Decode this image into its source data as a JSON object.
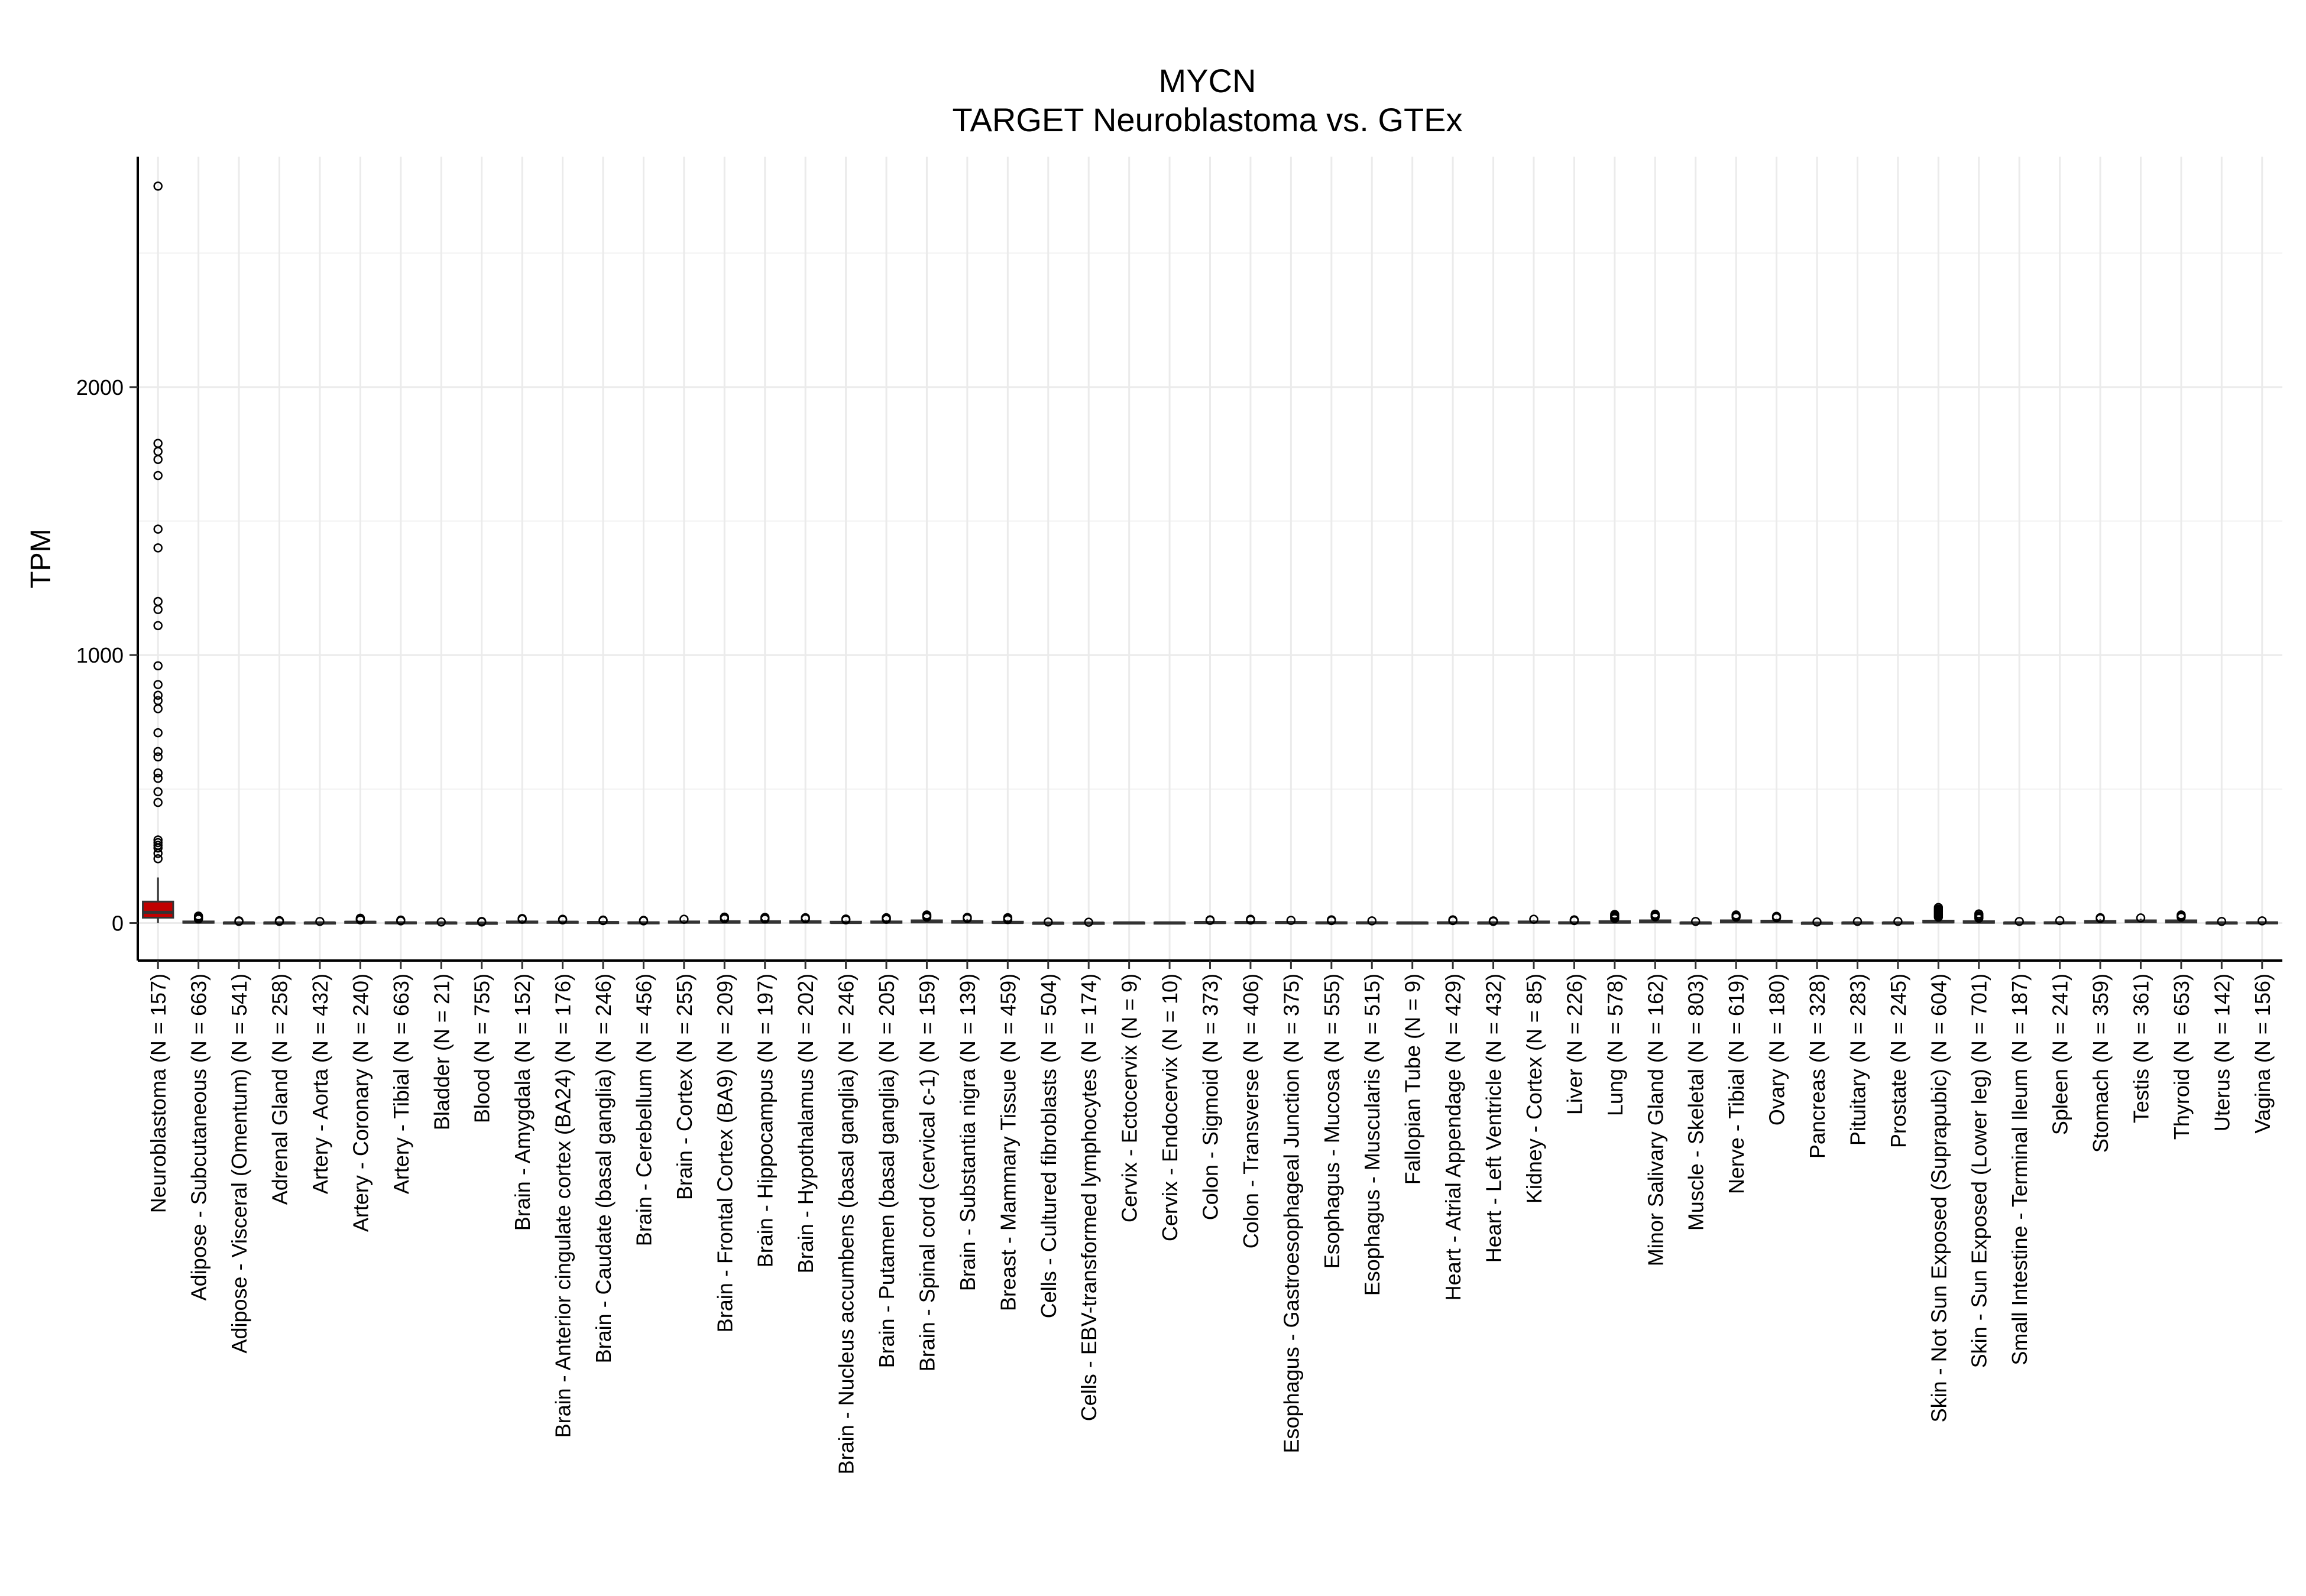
{
  "chart_data": {
    "type": "boxplot",
    "title": "MYCN",
    "subtitle": "TARGET Neuroblastoma vs. GTEx",
    "xlabel": "",
    "ylabel": "TPM",
    "ylim": [
      -140,
      2860
    ],
    "yticks": [
      0,
      1000,
      2000
    ],
    "grid": true,
    "legend": "none",
    "highlight_color": "#c00000",
    "box_color": "#ffffff",
    "categories": [
      "Neuroblastoma (N = 157)",
      "Adipose - Subcutaneous (N = 663)",
      "Adipose - Visceral (Omentum) (N = 541)",
      "Adrenal Gland (N = 258)",
      "Artery - Aorta (N = 432)",
      "Artery - Coronary (N = 240)",
      "Artery - Tibial (N = 663)",
      "Bladder (N = 21)",
      "Blood (N = 755)",
      "Brain - Amygdala (N = 152)",
      "Brain - Anterior cingulate cortex (BA24) (N = 176)",
      "Brain - Caudate (basal ganglia) (N = 246)",
      "Brain - Cerebellum (N = 456)",
      "Brain - Cortex (N = 255)",
      "Brain - Frontal Cortex (BA9) (N = 209)",
      "Brain - Hippocampus (N = 197)",
      "Brain - Hypothalamus (N = 202)",
      "Brain - Nucleus accumbens (basal ganglia) (N = 246)",
      "Brain - Putamen (basal ganglia) (N = 205)",
      "Brain - Spinal cord (cervical c-1) (N = 159)",
      "Brain - Substantia nigra (N = 139)",
      "Breast - Mammary Tissue (N = 459)",
      "Cells - Cultured fibroblasts (N = 504)",
      "Cells - EBV-transformed lymphocytes (N = 174)",
      "Cervix - Ectocervix (N = 9)",
      "Cervix - Endocervix (N = 10)",
      "Colon - Sigmoid (N = 373)",
      "Colon - Transverse (N = 406)",
      "Esophagus - Gastroesophageal Junction (N = 375)",
      "Esophagus - Mucosa (N = 555)",
      "Esophagus - Muscularis (N = 515)",
      "Fallopian Tube (N = 9)",
      "Heart - Atrial Appendage (N = 429)",
      "Heart - Left Ventricle (N = 432)",
      "Kidney - Cortex (N = 85)",
      "Liver (N = 226)",
      "Lung (N = 578)",
      "Minor Salivary Gland (N = 162)",
      "Muscle - Skeletal (N = 803)",
      "Nerve - Tibial (N = 619)",
      "Ovary (N = 180)",
      "Pancreas (N = 328)",
      "Pituitary (N = 283)",
      "Prostate (N = 245)",
      "Skin - Not Sun Exposed (Suprapubic) (N = 604)",
      "Skin - Sun Exposed (Lower leg) (N = 701)",
      "Small Intestine - Terminal Ileum (N = 187)",
      "Spleen (N = 241)",
      "Stomach (N = 359)",
      "Testis (N = 361)",
      "Thyroid (N = 653)",
      "Uterus (N = 142)",
      "Vagina (N = 156)"
    ],
    "boxes": [
      {
        "q1": 20,
        "median": 40,
        "q3": 80,
        "whisker_low": 0,
        "whisker_high": 170,
        "outliers": [
          2750,
          1790,
          1760,
          1730,
          1670,
          1470,
          1400,
          1200,
          1170,
          1110,
          960,
          890,
          850,
          830,
          800,
          710,
          640,
          620,
          560,
          540,
          490,
          450,
          310,
          300,
          290,
          280,
          260,
          240
        ],
        "highlight": true
      },
      {
        "q1": 1,
        "median": 3,
        "q3": 6,
        "whisker_low": 0,
        "whisker_high": 12,
        "outliers": [
          15,
          18,
          22,
          26
        ]
      },
      {
        "q1": 0,
        "median": 1,
        "q3": 2,
        "whisker_low": 0,
        "whisker_high": 4,
        "outliers": [
          6,
          8
        ]
      },
      {
        "q1": 0,
        "median": 1,
        "q3": 2,
        "whisker_low": 0,
        "whisker_high": 4,
        "outliers": [
          6,
          9
        ]
      },
      {
        "q1": 0,
        "median": 1,
        "q3": 2,
        "whisker_low": 0,
        "whisker_high": 4,
        "outliers": [
          6
        ]
      },
      {
        "q1": 1,
        "median": 3,
        "q3": 5,
        "whisker_low": 0,
        "whisker_high": 9,
        "outliers": [
          12,
          15,
          18
        ]
      },
      {
        "q1": 0,
        "median": 1,
        "q3": 3,
        "whisker_low": 0,
        "whisker_high": 6,
        "outliers": [
          8,
          11
        ]
      },
      {
        "q1": 0,
        "median": 1,
        "q3": 2,
        "whisker_low": 0,
        "whisker_high": 3,
        "outliers": [
          4
        ]
      },
      {
        "q1": 0,
        "median": 0,
        "q3": 1,
        "whisker_low": 0,
        "whisker_high": 2,
        "outliers": [
          4,
          6
        ]
      },
      {
        "q1": 1,
        "median": 3,
        "q3": 6,
        "whisker_low": 0,
        "whisker_high": 11,
        "outliers": [
          14,
          17
        ]
      },
      {
        "q1": 1,
        "median": 3,
        "q3": 5,
        "whisker_low": 0,
        "whisker_high": 9,
        "outliers": [
          12,
          14
        ]
      },
      {
        "q1": 1,
        "median": 2,
        "q3": 4,
        "whisker_low": 0,
        "whisker_high": 7,
        "outliers": [
          9,
          11
        ]
      },
      {
        "q1": 0,
        "median": 1,
        "q3": 3,
        "whisker_low": 0,
        "whisker_high": 6,
        "outliers": [
          8,
          10
        ]
      },
      {
        "q1": 1,
        "median": 3,
        "q3": 6,
        "whisker_low": 0,
        "whisker_high": 11,
        "outliers": [
          14
        ]
      },
      {
        "q1": 1,
        "median": 3,
        "q3": 7,
        "whisker_low": 0,
        "whisker_high": 13,
        "outliers": [
          16,
          19,
          22
        ]
      },
      {
        "q1": 1,
        "median": 3,
        "q3": 7,
        "whisker_low": 0,
        "whisker_high": 12,
        "outliers": [
          15,
          18,
          21
        ]
      },
      {
        "q1": 1,
        "median": 4,
        "q3": 7,
        "whisker_low": 0,
        "whisker_high": 13,
        "outliers": [
          16,
          20
        ]
      },
      {
        "q1": 1,
        "median": 2,
        "q3": 5,
        "whisker_low": 0,
        "whisker_high": 9,
        "outliers": [
          12,
          15
        ]
      },
      {
        "q1": 1,
        "median": 3,
        "q3": 6,
        "whisker_low": 0,
        "whisker_high": 11,
        "outliers": [
          14,
          17,
          20
        ]
      },
      {
        "q1": 2,
        "median": 5,
        "q3": 10,
        "whisker_low": 0,
        "whisker_high": 18,
        "outliers": [
          22,
          26,
          30
        ]
      },
      {
        "q1": 1,
        "median": 4,
        "q3": 8,
        "whisker_low": 0,
        "whisker_high": 14,
        "outliers": [
          17,
          21
        ]
      },
      {
        "q1": 1,
        "median": 2,
        "q3": 5,
        "whisker_low": 0,
        "whisker_high": 10,
        "outliers": [
          13,
          16,
          20
        ]
      },
      {
        "q1": 0,
        "median": 0,
        "q3": 1,
        "whisker_low": 0,
        "whisker_high": 2,
        "outliers": [
          4
        ]
      },
      {
        "q1": 0,
        "median": 0,
        "q3": 1,
        "whisker_low": 0,
        "whisker_high": 2,
        "outliers": [
          3
        ]
      },
      {
        "q1": 0,
        "median": 1,
        "q3": 2,
        "whisker_low": 0,
        "whisker_high": 3,
        "outliers": []
      },
      {
        "q1": 0,
        "median": 1,
        "q3": 2,
        "whisker_low": 0,
        "whisker_high": 3,
        "outliers": []
      },
      {
        "q1": 0,
        "median": 2,
        "q3": 4,
        "whisker_low": 0,
        "whisker_high": 8,
        "outliers": [
          10,
          12
        ]
      },
      {
        "q1": 0,
        "median": 2,
        "q3": 4,
        "whisker_low": 0,
        "whisker_high": 8,
        "outliers": [
          11,
          14
        ]
      },
      {
        "q1": 0,
        "median": 2,
        "q3": 4,
        "whisker_low": 0,
        "whisker_high": 7,
        "outliers": [
          10
        ]
      },
      {
        "q1": 0,
        "median": 1,
        "q3": 3,
        "whisker_low": 0,
        "whisker_high": 6,
        "outliers": [
          9,
          12
        ]
      },
      {
        "q1": 0,
        "median": 1,
        "q3": 3,
        "whisker_low": 0,
        "whisker_high": 6,
        "outliers": [
          8
        ]
      },
      {
        "q1": 0,
        "median": 1,
        "q3": 2,
        "whisker_low": 0,
        "whisker_high": 3,
        "outliers": []
      },
      {
        "q1": 0,
        "median": 1,
        "q3": 3,
        "whisker_low": 0,
        "whisker_high": 6,
        "outliers": [
          9,
          12
        ]
      },
      {
        "q1": 0,
        "median": 1,
        "q3": 2,
        "whisker_low": 0,
        "whisker_high": 4,
        "outliers": [
          6,
          8
        ]
      },
      {
        "q1": 1,
        "median": 3,
        "q3": 6,
        "whisker_low": 0,
        "whisker_high": 11,
        "outliers": [
          14
        ]
      },
      {
        "q1": 0,
        "median": 1,
        "q3": 3,
        "whisker_low": 0,
        "whisker_high": 6,
        "outliers": [
          9,
          12
        ]
      },
      {
        "q1": 1,
        "median": 3,
        "q3": 7,
        "whisker_low": 0,
        "whisker_high": 13,
        "outliers": [
          17,
          22,
          27,
          32
        ]
      },
      {
        "q1": 2,
        "median": 5,
        "q3": 10,
        "whisker_low": 0,
        "whisker_high": 18,
        "outliers": [
          23,
          28,
          33
        ]
      },
      {
        "q1": 0,
        "median": 1,
        "q3": 2,
        "whisker_low": 0,
        "whisker_high": 4,
        "outliers": [
          6
        ]
      },
      {
        "q1": 2,
        "median": 5,
        "q3": 10,
        "whisker_low": 0,
        "whisker_high": 18,
        "outliers": [
          22,
          26,
          30
        ]
      },
      {
        "q1": 2,
        "median": 5,
        "q3": 9,
        "whisker_low": 0,
        "whisker_high": 16,
        "outliers": [
          20,
          25
        ]
      },
      {
        "q1": 0,
        "median": 0,
        "q3": 1,
        "whisker_low": 0,
        "whisker_high": 2,
        "outliers": [
          4
        ]
      },
      {
        "q1": 0,
        "median": 1,
        "q3": 2,
        "whisker_low": 0,
        "whisker_high": 4,
        "outliers": [
          6
        ]
      },
      {
        "q1": 0,
        "median": 1,
        "q3": 2,
        "whisker_low": 0,
        "whisker_high": 4,
        "outliers": [
          6
        ]
      },
      {
        "q1": 2,
        "median": 4,
        "q3": 9,
        "whisker_low": 0,
        "whisker_high": 18,
        "outliers": [
          22,
          27,
          32,
          37,
          42,
          47,
          52,
          58
        ]
      },
      {
        "q1": 1,
        "median": 3,
        "q3": 7,
        "whisker_low": 0,
        "whisker_high": 14,
        "outliers": [
          18,
          23,
          28,
          34
        ]
      },
      {
        "q1": 0,
        "median": 1,
        "q3": 2,
        "whisker_low": 0,
        "whisker_high": 4,
        "outliers": [
          6
        ]
      },
      {
        "q1": 0,
        "median": 1,
        "q3": 3,
        "whisker_low": 0,
        "whisker_high": 6,
        "outliers": [
          9
        ]
      },
      {
        "q1": 1,
        "median": 4,
        "q3": 8,
        "whisker_low": 0,
        "whisker_high": 14,
        "outliers": [
          17,
          20
        ]
      },
      {
        "q1": 3,
        "median": 6,
        "q3": 10,
        "whisker_low": 0,
        "whisker_high": 16,
        "outliers": [
          19
        ]
      },
      {
        "q1": 2,
        "median": 5,
        "q3": 10,
        "whisker_low": 0,
        "whisker_high": 18,
        "outliers": [
          22,
          26,
          30
        ]
      },
      {
        "q1": 0,
        "median": 1,
        "q3": 2,
        "whisker_low": 0,
        "whisker_high": 4,
        "outliers": [
          6
        ]
      },
      {
        "q1": 0,
        "median": 1,
        "q3": 3,
        "whisker_low": 0,
        "whisker_high": 6,
        "outliers": [
          8
        ]
      }
    ]
  }
}
